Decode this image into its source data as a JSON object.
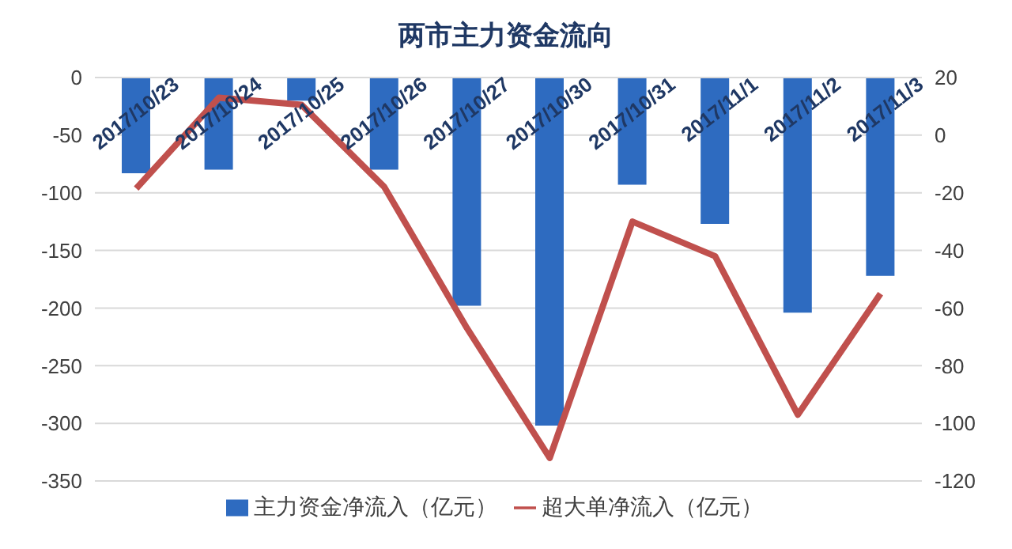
{
  "chart_data": {
    "type": "bar",
    "title": "两市主力资金流向",
    "categories": [
      "2017/10/23",
      "2017/10/24",
      "2017/10/25",
      "2017/10/26",
      "2017/10/27",
      "2017/10/30",
      "2017/10/31",
      "2017/11/1",
      "2017/11/2",
      "2017/11/3"
    ],
    "series": [
      {
        "name": "主力资金净流入（亿元）",
        "color": "#2e6bc0",
        "values": [
          -83,
          -80,
          -20,
          -80,
          -198,
          -302,
          -93,
          -127,
          -204,
          -172
        ]
      },
      {
        "name": "超大单净流入（亿元）",
        "type": "line",
        "axis": "y2",
        "color": "#c0504d",
        "values": [
          -18.5,
          13,
          10.5,
          -18,
          -67,
          -112,
          -30,
          -42,
          -97,
          -55
        ]
      }
    ],
    "ylim": [
      -350,
      0
    ],
    "yticks": [
      -350,
      -300,
      -250,
      -200,
      -150,
      -100,
      -50,
      0
    ],
    "y2lim": [
      -120,
      20
    ],
    "y2ticks": [
      -120,
      -100,
      -80,
      -60,
      -40,
      -20,
      0,
      20
    ],
    "grid": "y",
    "legend": "bottom",
    "marker": "none"
  }
}
